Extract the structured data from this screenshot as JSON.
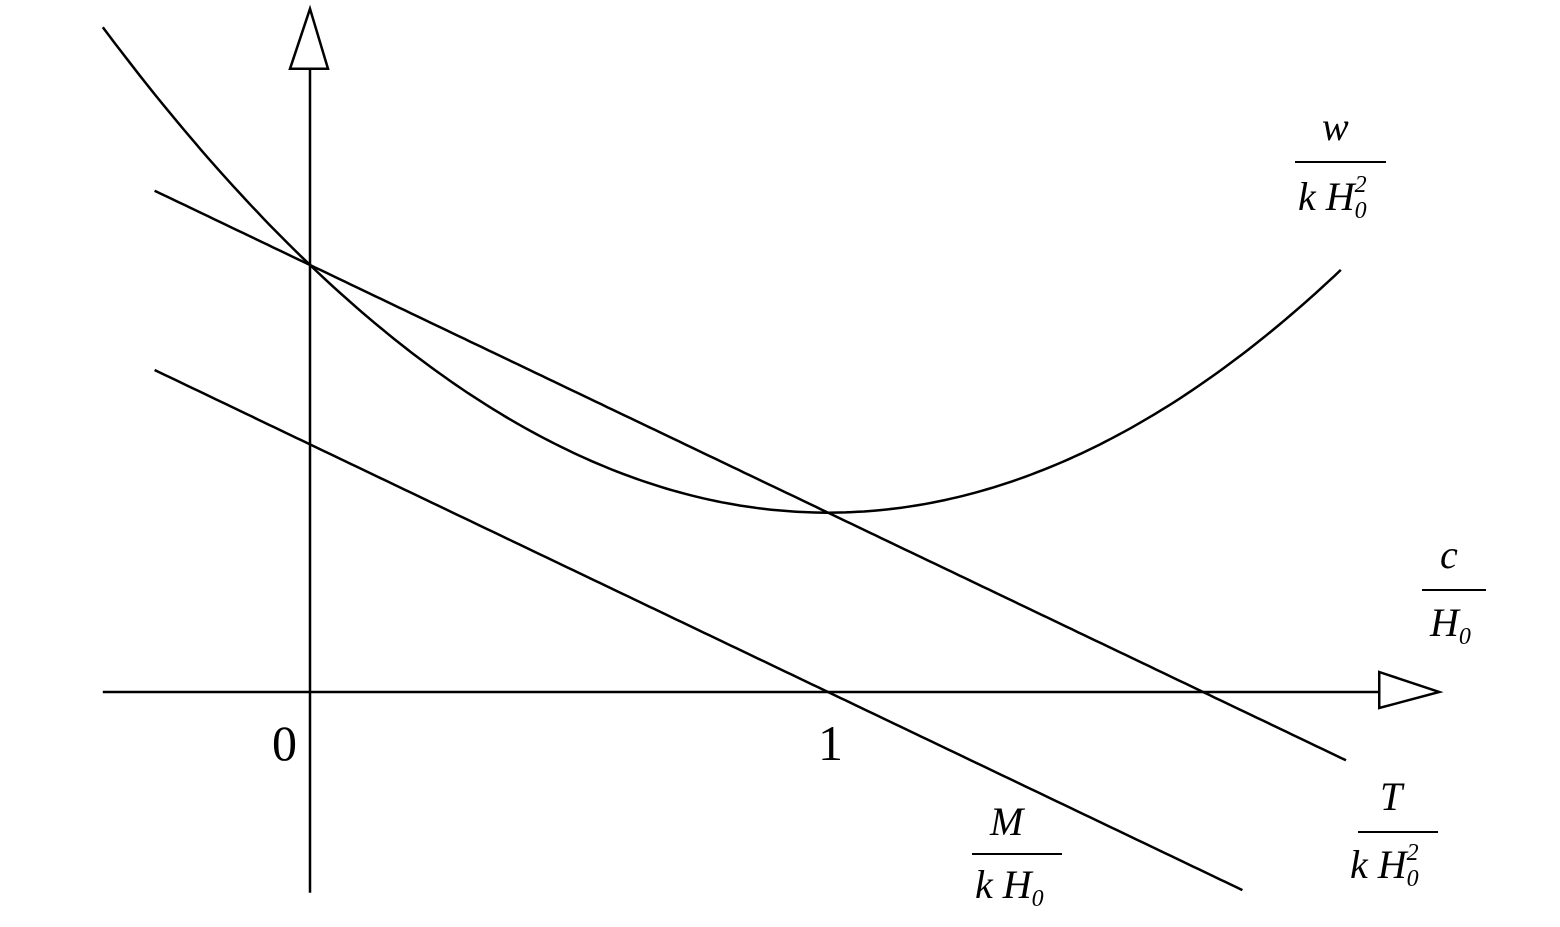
{
  "chart_data": {
    "type": "line",
    "title": "",
    "xlabel": {
      "numerator": "c",
      "denominator": "H",
      "sub": "0"
    },
    "xlim": [
      -0.4,
      2.18
    ],
    "ylim": [
      -0.47,
      1.6
    ],
    "grid": false,
    "x_ticks": [
      "0",
      "1"
    ],
    "series": [
      {
        "key": "w",
        "label": {
          "numerator": "w",
          "denominator": "k H",
          "sub": "0",
          "sup": "2"
        },
        "form": "parabola",
        "vertex": [
          1,
          0.42
        ],
        "coef": 0.58,
        "x_range": [
          -0.4,
          1.99
        ]
      },
      {
        "key": "T",
        "label": {
          "numerator": "T",
          "denominator": "k H",
          "sub": "0",
          "sup": "2"
        },
        "form": "linear",
        "intercept": 1.0,
        "slope": -0.58,
        "x_range": [
          -0.3,
          2.0
        ]
      },
      {
        "key": "M",
        "label": {
          "numerator": "M",
          "denominator": "k H",
          "sub": "0"
        },
        "form": "linear",
        "intercept": 0.58,
        "slope": -0.58,
        "x_range": [
          -0.3,
          1.8
        ]
      }
    ],
    "colors": {
      "ink": "#000000",
      "background": "#ffffff"
    }
  }
}
